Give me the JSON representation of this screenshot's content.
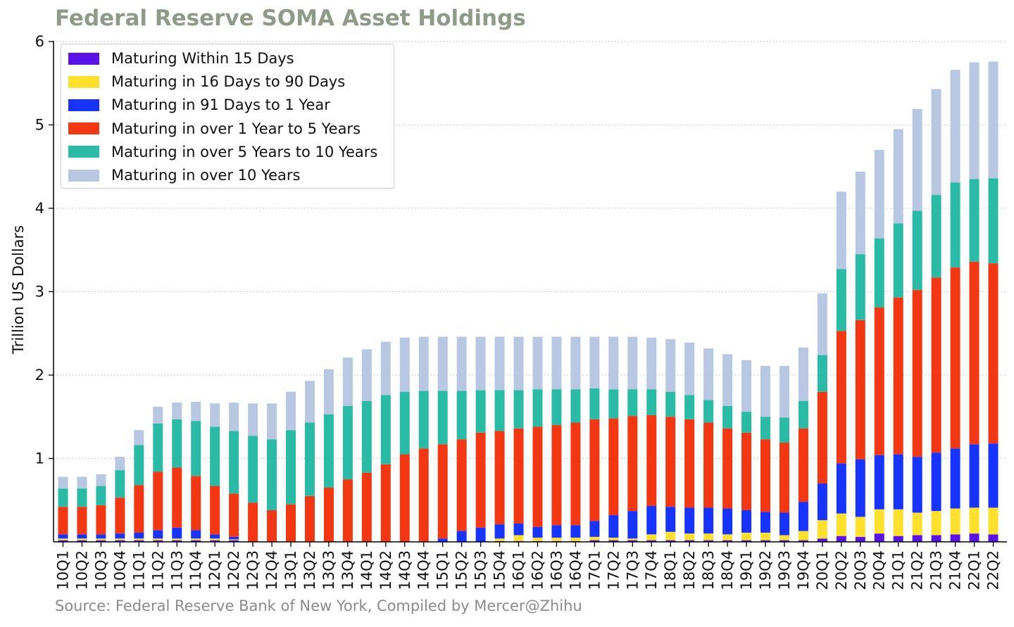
{
  "title": "Federal Reserve SOMA Asset Holdings",
  "source": "Source: Federal Reserve Bank of New York, Compiled by Mercer@Zhihu",
  "chart_data": {
    "type": "bar",
    "stacked": true,
    "title": "Federal Reserve SOMA Asset Holdings",
    "xlabel": "",
    "ylabel": "Trillion US Dollars",
    "ylim": [
      0,
      6
    ],
    "yticks": [
      1,
      2,
      3,
      4,
      5,
      6
    ],
    "grid": "horizontal dotted",
    "legend_position": "top-left",
    "categories": [
      "10Q1",
      "10Q2",
      "10Q3",
      "10Q4",
      "11Q1",
      "11Q2",
      "11Q3",
      "11Q4",
      "12Q1",
      "12Q2",
      "12Q3",
      "12Q4",
      "13Q1",
      "13Q2",
      "13Q3",
      "13Q4",
      "14Q1",
      "14Q2",
      "14Q3",
      "14Q4",
      "15Q1",
      "15Q2",
      "15Q3",
      "15Q4",
      "16Q1",
      "16Q2",
      "16Q3",
      "16Q4",
      "17Q1",
      "17Q2",
      "17Q3",
      "17Q4",
      "18Q1",
      "18Q2",
      "18Q3",
      "18Q4",
      "19Q1",
      "19Q2",
      "19Q3",
      "19Q4",
      "20Q1",
      "20Q2",
      "20Q3",
      "20Q4",
      "21Q1",
      "21Q2",
      "21Q3",
      "21Q4",
      "22Q1",
      "22Q2"
    ],
    "series": [
      {
        "name": "Maturing Within 15 Days",
        "color": "#5b12e8",
        "values": [
          0.02,
          0.02,
          0.02,
          0.02,
          0.02,
          0.02,
          0.02,
          0.02,
          0.02,
          0.02,
          0.0,
          0.0,
          0.0,
          0.0,
          0.0,
          0.0,
          0.0,
          0.0,
          0.0,
          0.0,
          0.0,
          0.0,
          0.0,
          0.01,
          0.01,
          0.01,
          0.01,
          0.01,
          0.02,
          0.02,
          0.02,
          0.02,
          0.02,
          0.02,
          0.02,
          0.02,
          0.02,
          0.02,
          0.02,
          0.02,
          0.04,
          0.07,
          0.06,
          0.1,
          0.07,
          0.08,
          0.08,
          0.09,
          0.1,
          0.09
        ]
      },
      {
        "name": "Maturing in 16 Days to 90 Days",
        "color": "#ffe12b",
        "values": [
          0.02,
          0.02,
          0.02,
          0.02,
          0.02,
          0.02,
          0.02,
          0.02,
          0.02,
          0.01,
          0.0,
          0.0,
          0.0,
          0.0,
          0.0,
          0.0,
          0.0,
          0.0,
          0.0,
          0.0,
          0.0,
          0.0,
          0.0,
          0.03,
          0.07,
          0.04,
          0.04,
          0.04,
          0.04,
          0.03,
          0.02,
          0.07,
          0.1,
          0.08,
          0.08,
          0.07,
          0.09,
          0.09,
          0.06,
          0.11,
          0.22,
          0.27,
          0.24,
          0.29,
          0.32,
          0.27,
          0.29,
          0.31,
          0.31,
          0.32
        ]
      },
      {
        "name": "Maturing in 91 Days to 1 Year",
        "color": "#1733ff",
        "values": [
          0.05,
          0.05,
          0.05,
          0.06,
          0.07,
          0.1,
          0.13,
          0.1,
          0.05,
          0.03,
          0.0,
          0.0,
          0.0,
          0.0,
          0.0,
          0.0,
          0.0,
          0.0,
          0.0,
          0.0,
          0.04,
          0.13,
          0.17,
          0.17,
          0.14,
          0.13,
          0.15,
          0.15,
          0.19,
          0.27,
          0.33,
          0.34,
          0.3,
          0.31,
          0.31,
          0.31,
          0.27,
          0.25,
          0.27,
          0.35,
          0.44,
          0.6,
          0.69,
          0.65,
          0.66,
          0.67,
          0.7,
          0.72,
          0.76,
          0.77
        ]
      },
      {
        "name": "Maturing in over 1 Year to 5 Years",
        "color": "#f23712",
        "values": [
          0.33,
          0.33,
          0.35,
          0.43,
          0.57,
          0.7,
          0.72,
          0.65,
          0.58,
          0.52,
          0.47,
          0.38,
          0.45,
          0.55,
          0.65,
          0.75,
          0.83,
          0.93,
          1.05,
          1.12,
          1.13,
          1.1,
          1.14,
          1.12,
          1.14,
          1.2,
          1.2,
          1.23,
          1.22,
          1.16,
          1.14,
          1.09,
          1.08,
          1.06,
          1.02,
          0.96,
          0.93,
          0.87,
          0.84,
          0.88,
          1.1,
          1.59,
          1.67,
          1.77,
          1.88,
          2.0,
          2.1,
          2.17,
          2.19,
          2.16
        ]
      },
      {
        "name": "Maturing in over 5 Years to 10 Years",
        "color": "#29bba5",
        "values": [
          0.22,
          0.22,
          0.23,
          0.33,
          0.48,
          0.58,
          0.58,
          0.66,
          0.71,
          0.75,
          0.8,
          0.85,
          0.89,
          0.88,
          0.88,
          0.88,
          0.86,
          0.83,
          0.75,
          0.69,
          0.64,
          0.58,
          0.51,
          0.49,
          0.46,
          0.45,
          0.43,
          0.4,
          0.37,
          0.35,
          0.32,
          0.31,
          0.3,
          0.29,
          0.27,
          0.27,
          0.25,
          0.27,
          0.3,
          0.33,
          0.44,
          0.74,
          0.79,
          0.83,
          0.89,
          0.95,
          0.99,
          1.02,
          0.99,
          1.02
        ]
      },
      {
        "name": "Maturing in over 10 Years",
        "color": "#b8c8e2",
        "values": [
          0.14,
          0.14,
          0.14,
          0.16,
          0.18,
          0.2,
          0.2,
          0.23,
          0.28,
          0.34,
          0.39,
          0.43,
          0.46,
          0.5,
          0.54,
          0.58,
          0.62,
          0.64,
          0.65,
          0.65,
          0.65,
          0.65,
          0.64,
          0.64,
          0.64,
          0.63,
          0.63,
          0.63,
          0.62,
          0.63,
          0.63,
          0.62,
          0.63,
          0.63,
          0.62,
          0.62,
          0.62,
          0.61,
          0.62,
          0.64,
          0.74,
          0.93,
          0.99,
          1.06,
          1.13,
          1.22,
          1.27,
          1.35,
          1.4,
          1.4
        ]
      }
    ]
  }
}
